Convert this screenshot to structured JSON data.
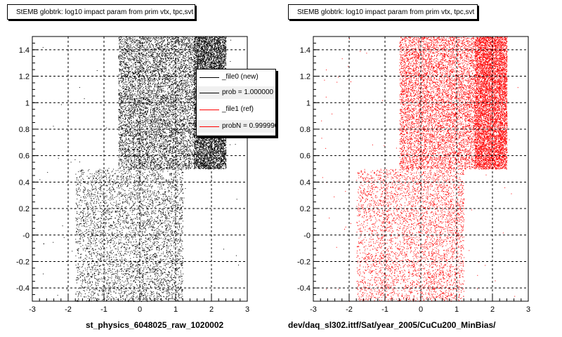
{
  "panels": [
    {
      "title": "StEMB globtrk: log10 impact param from prim vtx, tpc,svt",
      "xcaption": "st_physics_6048025_raw_1020002",
      "color": "#000000"
    },
    {
      "title": "StEMB globtrk: log10 impact param from prim vtx, tpc,svt",
      "xcaption": "dev/daq_sl302.ittf/Sat/year_2005/CuCu200_MinBias/",
      "color": "#ff0000"
    }
  ],
  "legend": {
    "entries": [
      {
        "label": "_file0 (new)",
        "color": "#000000"
      },
      {
        "label": "prob = 1.000000",
        "color": "#000000"
      },
      {
        "label": "_file1 (ref)",
        "color": "#ff0000"
      },
      {
        "label": "probN = 0.999990",
        "color": "#ff0000"
      }
    ]
  },
  "chart_data": [
    {
      "type": "scatter",
      "title": "StEMB globtrk: log10 impact param from prim vtx, tpc,svt",
      "xlabel": "st_physics_6048025_raw_1020002",
      "ylabel": "",
      "xlim": [
        -3,
        3
      ],
      "ylim": [
        -0.5,
        1.5
      ],
      "xticks": [
        "-3",
        "-2",
        "-1",
        "0",
        "1",
        "2",
        "3"
      ],
      "yticks": [
        "-0.4",
        "-0.2",
        "-0",
        "0.2",
        "0.4",
        "0.6",
        "0.8",
        "1",
        "1.2",
        "1.4"
      ],
      "grid": true,
      "series": [
        {
          "name": "_file0 (new)",
          "color": "#000000",
          "density_regions": [
            {
              "x": [
                -1.8,
                1.2
              ],
              "y": [
                -0.5,
                0.5
              ],
              "density": "sparse"
            },
            {
              "x": [
                -0.6,
                1.5
              ],
              "y": [
                0.5,
                1.5
              ],
              "density": "dense"
            },
            {
              "x": [
                1.5,
                2.4
              ],
              "y": [
                0.5,
                1.5
              ],
              "density": "very dense"
            }
          ]
        }
      ]
    },
    {
      "type": "scatter",
      "title": "StEMB globtrk: log10 impact param from prim vtx, tpc,svt",
      "xlabel": "dev/daq_sl302.ittf/Sat/year_2005/CuCu200_MinBias/",
      "ylabel": "",
      "xlim": [
        -3,
        3
      ],
      "ylim": [
        -0.5,
        1.5
      ],
      "xticks": [
        "-3",
        "-2",
        "-1",
        "0",
        "1",
        "2",
        "3"
      ],
      "yticks": [
        "-0.4",
        "-0.2",
        "-0",
        "0.2",
        "0.4",
        "0.6",
        "0.8",
        "1",
        "1.2",
        "1.4"
      ],
      "grid": true,
      "series": [
        {
          "name": "_file1 (ref)",
          "color": "#ff0000",
          "density_regions": [
            {
              "x": [
                -1.8,
                1.2
              ],
              "y": [
                -0.5,
                0.5
              ],
              "density": "sparse"
            },
            {
              "x": [
                -0.6,
                1.5
              ],
              "y": [
                0.5,
                1.5
              ],
              "density": "dense"
            },
            {
              "x": [
                1.5,
                2.4
              ],
              "y": [
                0.5,
                1.5
              ],
              "density": "very dense"
            }
          ]
        }
      ]
    }
  ]
}
